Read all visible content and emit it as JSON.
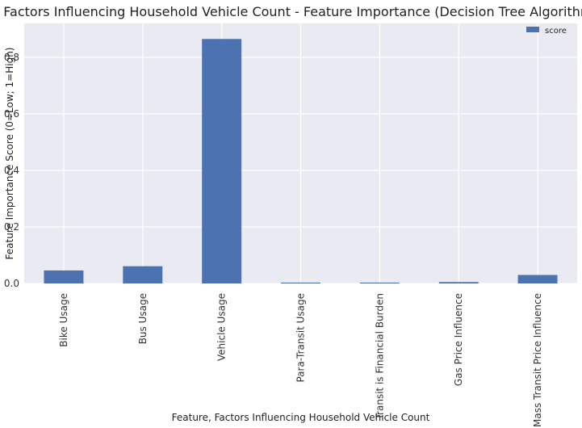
{
  "chart_data": {
    "type": "bar",
    "title": "Factors Influencing Household Vehicle Count - Feature Importance (Decision Tree Algorithm)",
    "xlabel": "Feature, Factors Influencing Household Vehicle Count",
    "ylabel": "Feature Importance Score (0=Low; 1=High)",
    "categories": [
      "Bike Usage",
      "Bus Usage",
      "Vehicle Usage",
      "Para-Transit Usage",
      "Transit is Financial Burden",
      "Gas Price Influence",
      "Mass Transit Price Influence"
    ],
    "series": [
      {
        "name": "score",
        "values": [
          0.046,
          0.061,
          0.865,
          0.003,
          0.003,
          0.005,
          0.03
        ]
      }
    ],
    "ylim": [
      0,
      0.92
    ],
    "yticks": [
      0.0,
      0.2,
      0.4,
      0.6,
      0.8
    ],
    "ytick_labels": [
      "0.0",
      "0.2",
      "0.4",
      "0.6",
      "0.8"
    ],
    "grid": true,
    "legend_position": "top-right",
    "colors": {
      "bar": "#4c72b0",
      "plot_background": "#eaeaf2",
      "grid": "#ffffff"
    }
  }
}
